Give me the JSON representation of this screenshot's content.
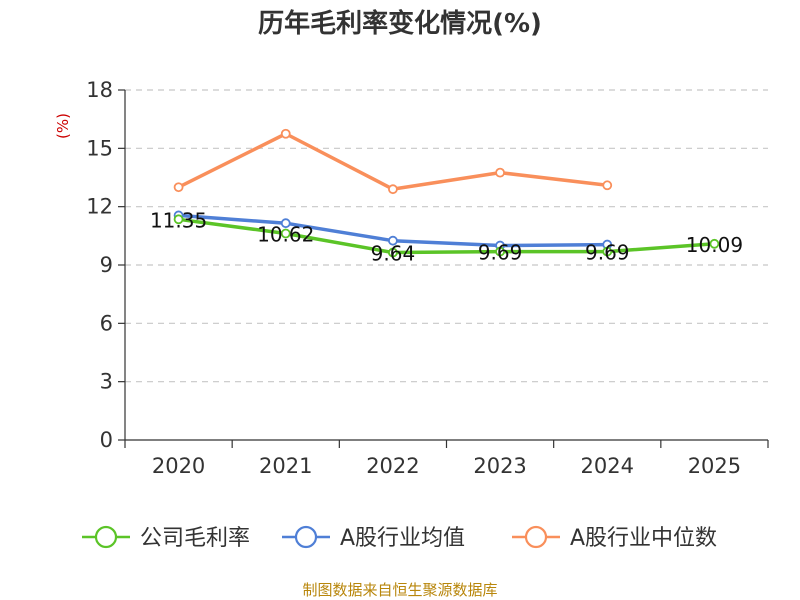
{
  "chart_data": {
    "type": "line",
    "title": "历年毛利率变化情况(%)",
    "ylabel": "(%)",
    "xlabel": "",
    "ylim": [
      0,
      18
    ],
    "yticks": [
      0,
      3,
      6,
      9,
      12,
      15,
      18
    ],
    "categories": [
      "2020",
      "2021",
      "2022",
      "2023",
      "2024",
      "2025"
    ],
    "grid": true,
    "legend_position": "bottom",
    "series": [
      {
        "name": "公司毛利率",
        "color": "#5bc427",
        "values": [
          11.35,
          10.62,
          9.64,
          9.69,
          9.69,
          10.09
        ],
        "data_labels": [
          "11.35",
          "10.62",
          "9.64",
          "9.69",
          "9.69",
          "10.09"
        ]
      },
      {
        "name": "A股行业均值",
        "color": "#4f7fd6",
        "values": [
          11.55,
          11.15,
          10.25,
          10.0,
          10.05,
          null
        ]
      },
      {
        "name": "A股行业中位数",
        "color": "#f98f5b",
        "values": [
          13.0,
          15.75,
          12.9,
          13.75,
          13.1,
          null
        ]
      }
    ],
    "source": "制图数据来自恒生聚源数据库"
  }
}
